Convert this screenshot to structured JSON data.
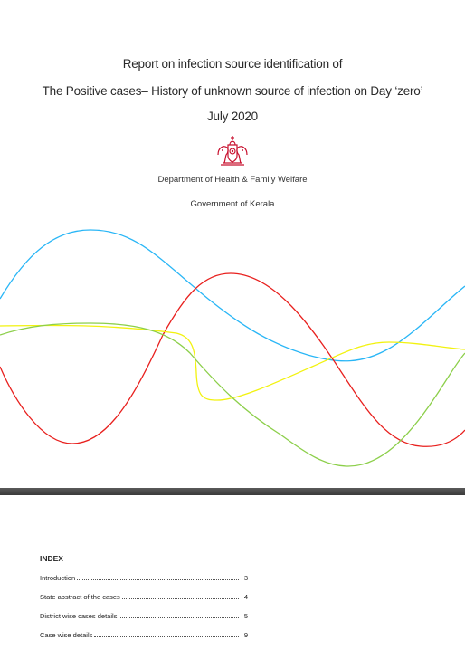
{
  "cover": {
    "title_line1": "Report on infection source identification of",
    "title_line2": "The Positive cases– History of unknown source of infection on Day ‘zero’",
    "title_line3": "July 2020",
    "emblem_icon": "kerala-emblem-icon",
    "department": "Department of Health & Family Welfare",
    "government": "Government of Kerala",
    "wave_colors": {
      "blue": "#29b6f6",
      "red": "#e8201e",
      "yellow": "#f2f20f",
      "green": "#8ccf4a"
    }
  },
  "index": {
    "title": "INDEX",
    "items": [
      {
        "label": "Introduction",
        "page": "3"
      },
      {
        "label": "State abstract of the cases",
        "page": "4"
      },
      {
        "label": "District wise cases details",
        "page": "5"
      },
      {
        "label": "Case wise details",
        "page": "9"
      }
    ]
  }
}
